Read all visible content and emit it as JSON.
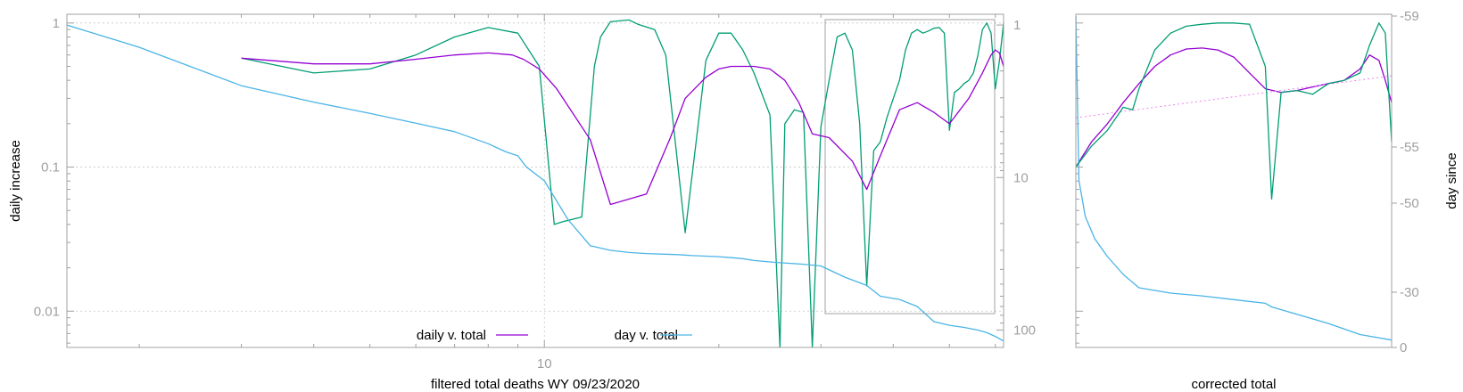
{
  "chart_data": [
    {
      "type": "line",
      "xlabel": "filtered total deaths WY 09/23/2020",
      "ylabel": "daily increase",
      "y2label": "",
      "x_scale": "log",
      "xlim": [
        1.5,
        62
      ],
      "x_ticks": [
        {
          "value": 10,
          "label": "10"
        }
      ],
      "y_scale": "log",
      "ylim": [
        0.0056,
        1.15
      ],
      "y_ticks": [
        {
          "value": 1,
          "label": "1"
        },
        {
          "value": 0.1,
          "label": "0.1"
        },
        {
          "value": 0.01,
          "label": "0.01"
        }
      ],
      "y2_scale": "log",
      "y2_reversed": true,
      "y2lim": [
        0.85,
        130
      ],
      "y2_ticks": [
        {
          "value": 1,
          "label": "1"
        },
        {
          "value": 10,
          "label": "10"
        },
        {
          "value": 100,
          "label": "100"
        }
      ],
      "grid": true,
      "legend_position": "bottom-center",
      "series": [
        {
          "name": "daily v. total",
          "axis": "y",
          "color": "#9400d3",
          "x": [
            3,
            4,
            5,
            6,
            7,
            8,
            8.8,
            9.2,
            9.8,
            10.5,
            12,
            13,
            15,
            16.5,
            17.5,
            19,
            20,
            21,
            22,
            23,
            24.5,
            26,
            27.5,
            29,
            31,
            34,
            36,
            38,
            41,
            44,
            47,
            50,
            54,
            57,
            59,
            60,
            61,
            62
          ],
          "values": [
            0.57,
            0.52,
            0.52,
            0.56,
            0.6,
            0.62,
            0.6,
            0.56,
            0.48,
            0.35,
            0.155,
            0.055,
            0.065,
            0.16,
            0.3,
            0.42,
            0.48,
            0.5,
            0.5,
            0.5,
            0.48,
            0.4,
            0.28,
            0.17,
            0.16,
            0.11,
            0.07,
            0.12,
            0.25,
            0.28,
            0.24,
            0.2,
            0.3,
            0.45,
            0.6,
            0.65,
            0.62,
            0.5
          ]
        },
        {
          "name": "day v. total",
          "axis": "y2",
          "color": "#4ab4e6",
          "x": [
            1.5,
            2,
            3,
            4,
            5,
            6,
            7,
            7.5,
            8,
            8.3,
            8.6,
            9,
            9.3,
            10,
            11,
            12,
            13,
            14,
            15,
            17,
            18,
            20,
            21,
            22,
            23,
            25,
            28,
            30,
            33,
            36,
            38,
            41,
            44,
            47,
            50,
            53,
            56,
            58,
            60,
            62
          ],
          "values": [
            1,
            1.4,
            2.5,
            3.2,
            3.8,
            4.4,
            5.0,
            5.5,
            6.0,
            6.4,
            6.8,
            7.2,
            8.5,
            10.5,
            19,
            28,
            30,
            31,
            31.5,
            32,
            32.5,
            33,
            33.5,
            34,
            35,
            36,
            37,
            38,
            45,
            51,
            60,
            63,
            70,
            88,
            93,
            96,
            100,
            104,
            110,
            118
          ]
        },
        {
          "name": "",
          "axis": "y",
          "color": "#009e73",
          "x": [
            3,
            4,
            5,
            6,
            7,
            8,
            9,
            9.8,
            10.4,
            10.8,
            11.6,
            12.2,
            12.5,
            13,
            14,
            14.5,
            15.5,
            16.2,
            17.5,
            19,
            20,
            21,
            22,
            23,
            24.5,
            25.5,
            26,
            27,
            28,
            29,
            30,
            31,
            32,
            33,
            34,
            35,
            36,
            37,
            38,
            39,
            40,
            41,
            42,
            43,
            44,
            45,
            46,
            47,
            48,
            49,
            50,
            51,
            52,
            53,
            54,
            55,
            56,
            57,
            58,
            59,
            60,
            61,
            62
          ],
          "values": [
            0.57,
            0.45,
            0.48,
            0.6,
            0.8,
            0.93,
            0.85,
            0.5,
            0.04,
            0.042,
            0.045,
            0.5,
            0.8,
            1.02,
            1.05,
            0.98,
            0.9,
            0.6,
            0.035,
            0.55,
            0.85,
            0.85,
            0.65,
            0.45,
            0.23,
            0.005,
            0.2,
            0.25,
            0.24,
            0.005,
            0.19,
            0.4,
            0.8,
            0.85,
            0.65,
            0.2,
            0.015,
            0.13,
            0.15,
            0.22,
            0.3,
            0.4,
            0.65,
            0.85,
            0.9,
            0.85,
            0.88,
            0.92,
            0.93,
            0.85,
            0.18,
            0.33,
            0.35,
            0.38,
            0.4,
            0.45,
            0.6,
            0.9,
            1.0,
            0.85,
            0.35,
            0.55,
            1.0
          ]
        }
      ]
    },
    {
      "type": "line",
      "xlabel": "corrected total",
      "ylabel": "",
      "y2label": "day since",
      "y_scale": "log",
      "ylim": [
        0.0056,
        1.15
      ],
      "y2_ticks": [
        {
          "value": 0,
          "label": "0"
        },
        {
          "value": -30,
          "label": "-30"
        },
        {
          "value": -50,
          "label": "-50"
        },
        {
          "value": -55,
          "label": "-55"
        },
        {
          "value": -59,
          "label": "-59"
        }
      ],
      "grid": false,
      "series": [
        {
          "name": "",
          "axis": "y",
          "color": "#9400d3",
          "x": [
            0,
            0.05,
            0.1,
            0.15,
            0.2,
            0.25,
            0.3,
            0.35,
            0.4,
            0.45,
            0.5,
            0.55,
            0.6,
            0.65,
            0.7,
            0.75,
            0.8,
            0.85,
            0.9,
            0.93,
            0.96,
            0.98,
            1.0
          ],
          "values": [
            0.1,
            0.15,
            0.2,
            0.28,
            0.38,
            0.5,
            0.6,
            0.66,
            0.67,
            0.65,
            0.58,
            0.45,
            0.35,
            0.33,
            0.34,
            0.36,
            0.38,
            0.4,
            0.48,
            0.6,
            0.55,
            0.4,
            0.28
          ]
        },
        {
          "name": "",
          "axis": "y",
          "color": "#ee82ee",
          "dashed": true,
          "x": [
            0,
            1.0
          ],
          "values": [
            0.22,
            0.43
          ]
        },
        {
          "name": "",
          "axis": "y2",
          "color": "#4ab4e6",
          "x": [
            0,
            0.01,
            0.03,
            0.06,
            0.1,
            0.15,
            0.2,
            0.3,
            0.4,
            0.5,
            0.6,
            0.62,
            0.7,
            0.8,
            0.9,
            1.0
          ],
          "values": [
            -59,
            -52,
            -47,
            -42,
            -38,
            -34,
            -31,
            -29.5,
            -28,
            -26,
            -24,
            -22,
            -18,
            -13,
            -7,
            -4
          ]
        },
        {
          "name": "",
          "axis": "y",
          "color": "#009e73",
          "x": [
            0,
            0.05,
            0.1,
            0.15,
            0.18,
            0.2,
            0.25,
            0.3,
            0.35,
            0.4,
            0.45,
            0.5,
            0.55,
            0.6,
            0.62,
            0.65,
            0.7,
            0.75,
            0.8,
            0.85,
            0.9,
            0.93,
            0.96,
            0.98,
            1.0
          ],
          "values": [
            0.1,
            0.14,
            0.18,
            0.26,
            0.25,
            0.35,
            0.65,
            0.85,
            0.95,
            0.98,
            1.0,
            1.0,
            0.98,
            0.5,
            0.06,
            0.33,
            0.34,
            0.32,
            0.38,
            0.4,
            0.45,
            0.7,
            1.0,
            0.85,
            0.15
          ]
        }
      ]
    }
  ]
}
